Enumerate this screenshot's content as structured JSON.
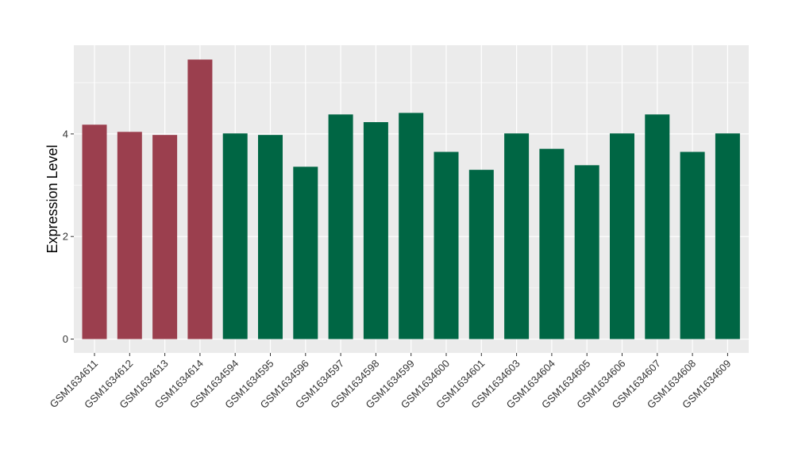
{
  "chart_data": {
    "type": "bar",
    "title": "",
    "xlabel": "",
    "ylabel": "Expression Level",
    "ylim": [
      -0.27,
      5.73
    ],
    "yticks": [
      0,
      2,
      4
    ],
    "grid": true,
    "legend": "none",
    "categories": [
      "GSM1634611",
      "GSM1634612",
      "GSM1634613",
      "GSM1634614",
      "GSM1634594",
      "GSM1634595",
      "GSM1634596",
      "GSM1634597",
      "GSM1634598",
      "GSM1634599",
      "GSM1634600",
      "GSM1634601",
      "GSM1634603",
      "GSM1634604",
      "GSM1634605",
      "GSM1634606",
      "GSM1634607",
      "GSM1634608",
      "GSM1634609"
    ],
    "values": [
      4.18,
      4.04,
      3.98,
      5.45,
      4.01,
      3.98,
      3.36,
      4.38,
      4.23,
      4.41,
      3.65,
      3.3,
      4.01,
      3.71,
      3.39,
      4.01,
      4.38,
      3.65,
      4.01
    ],
    "bar_groups": [
      "red",
      "red",
      "red",
      "red",
      "green",
      "green",
      "green",
      "green",
      "green",
      "green",
      "green",
      "green",
      "green",
      "green",
      "green",
      "green",
      "green",
      "green",
      "green"
    ],
    "colors": {
      "red": "#9b3f4e",
      "green": "#006644",
      "panel": "#ebebeb",
      "grid": "#ffffff"
    }
  }
}
